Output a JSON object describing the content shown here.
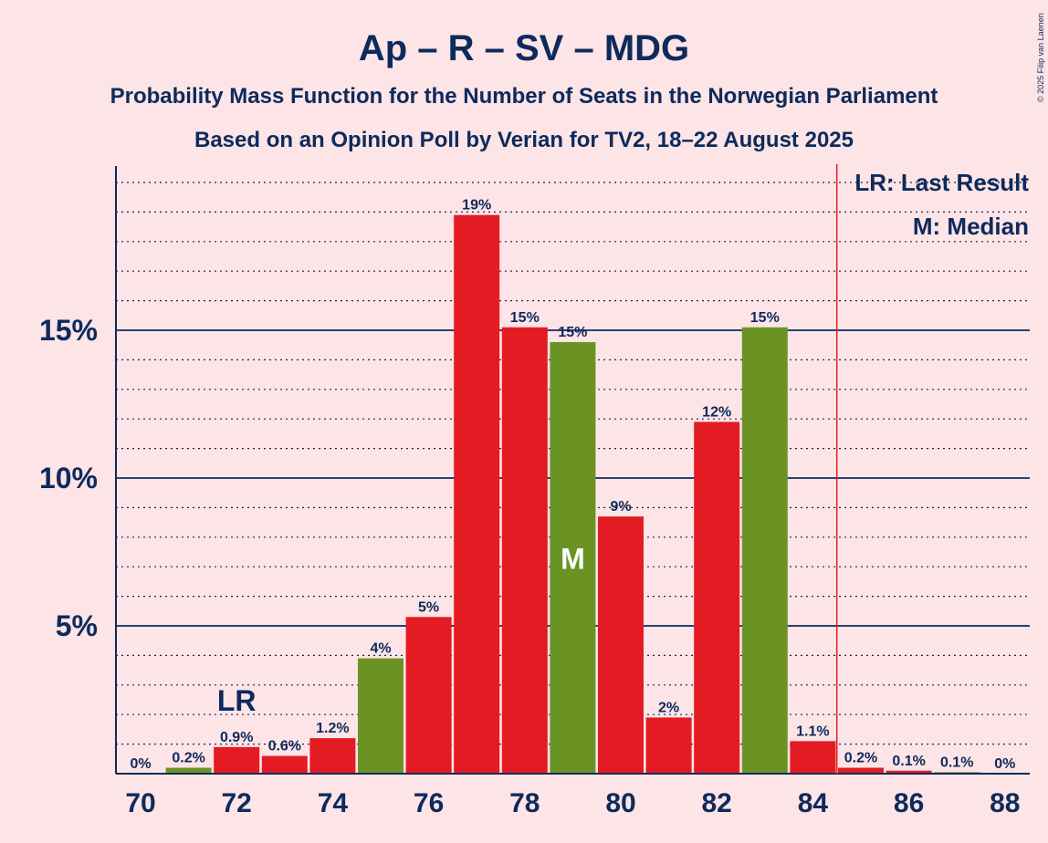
{
  "title": "Ap – R – SV – MDG",
  "subtitle1": "Probability Mass Function for the Number of Seats in the Norwegian Parliament",
  "subtitle2": "Based on an Opinion Poll by Verian for TV2, 18–22 August 2025",
  "copyright": "© 2025 Filip van Laenen",
  "legend": {
    "last_result": "LR: Last Result",
    "median": "M: Median"
  },
  "colors": {
    "background": "#fde4e6",
    "text": "#0d2a5c",
    "red_bar": "#e31b23",
    "green_bar": "#6b9324",
    "majority_line": "#e31b23"
  },
  "chart_data": {
    "type": "bar",
    "xlabel": "",
    "ylabel": "",
    "x": [
      70,
      71,
      72,
      73,
      74,
      75,
      76,
      77,
      78,
      79,
      80,
      81,
      82,
      83,
      84,
      85,
      86,
      87,
      88
    ],
    "values": [
      0,
      0.2,
      0.9,
      0.6,
      1.2,
      3.9,
      5.3,
      18.9,
      15.1,
      14.6,
      8.7,
      1.9,
      11.9,
      15.1,
      1.1,
      0.2,
      0.1,
      0.05,
      0
    ],
    "labels": [
      "0%",
      "0.2%",
      "0.9%",
      "0.6%",
      "1.2%",
      "4%",
      "5%",
      "19%",
      "15%",
      "15%",
      "9%",
      "2%",
      "12%",
      "15%",
      "1.1%",
      "0.2%",
      "0.1%",
      "0.1%",
      "0%"
    ],
    "bar_colors": [
      "red",
      "green",
      "red",
      "red",
      "red",
      "green",
      "red",
      "red",
      "red",
      "green",
      "red",
      "red",
      "red",
      "green",
      "red",
      "red",
      "red",
      "green",
      "red"
    ],
    "x_ticks": [
      70,
      72,
      74,
      76,
      78,
      80,
      82,
      84,
      86,
      88
    ],
    "y_ticks": [
      5,
      10,
      15
    ],
    "y_tick_labels": [
      "5%",
      "10%",
      "15%"
    ],
    "ylim": [
      0,
      20.5
    ],
    "last_result_seat": 72,
    "last_result_label": "LR",
    "median_seat": 79,
    "median_label": "M",
    "majority_threshold": 84.5
  }
}
